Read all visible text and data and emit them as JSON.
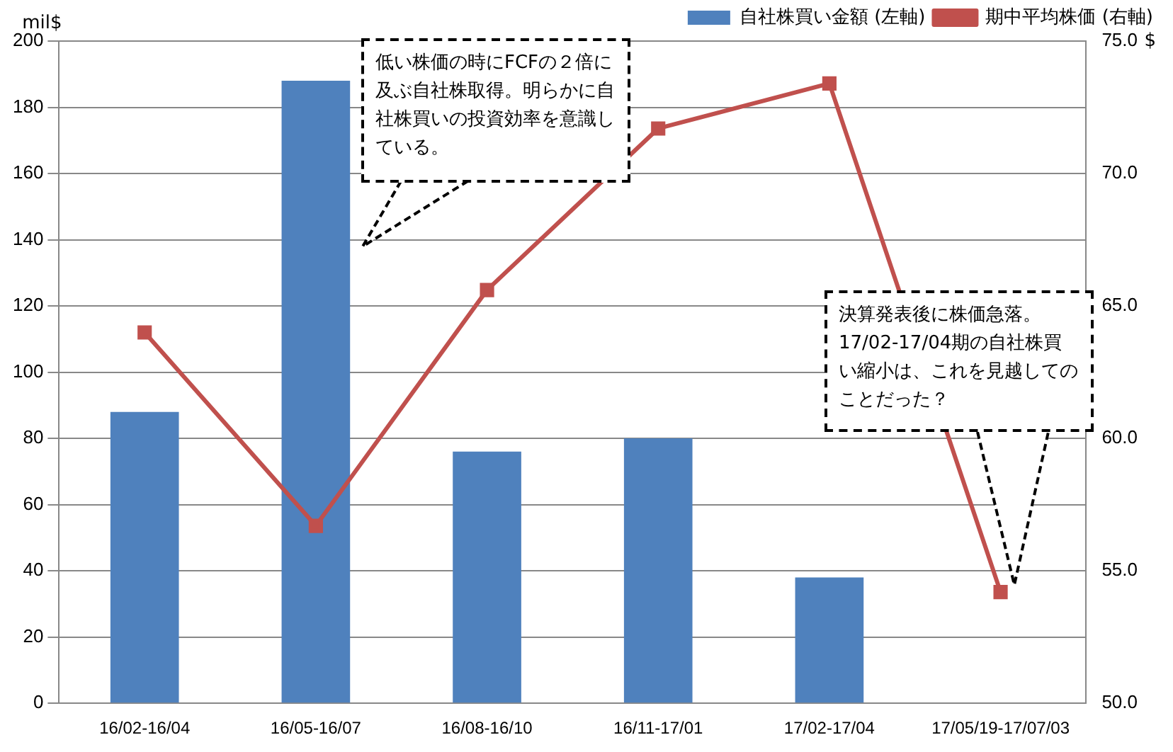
{
  "chart_data": {
    "type": "bar",
    "categories": [
      "16/02-16/04",
      "16/05-16/07",
      "16/08-16/10",
      "16/11-17/01",
      "17/02-17/04",
      "17/05/19-17/07/03"
    ],
    "series": [
      {
        "name": "自社株買い金額 (左軸)",
        "color": "#4f81bd",
        "values": [
          88,
          188,
          76,
          80,
          38,
          null
        ]
      },
      {
        "name": "期中平均株価 (右軸)",
        "type": "line",
        "axis": "y2",
        "color": "#c0504d",
        "marker": "square",
        "values": [
          64.0,
          56.7,
          65.6,
          71.7,
          73.4,
          54.2
        ]
      }
    ],
    "ylabel": "mil$",
    "y2label": "$",
    "ylim": [
      0,
      200
    ],
    "yticks": [
      0,
      20,
      40,
      60,
      80,
      100,
      120,
      140,
      160,
      180,
      200
    ],
    "y2lim": [
      50,
      75
    ],
    "y2ticks": [
      {
        "value": 50,
        "label": "50.0"
      },
      {
        "value": 55,
        "label": "55.0"
      },
      {
        "value": 60,
        "label": "60.0"
      },
      {
        "value": 65,
        "label": "65.0"
      },
      {
        "value": 70,
        "label": "70.0"
      },
      {
        "value": 75,
        "label": "75.0"
      }
    ],
    "grid": "y",
    "legend": "top right",
    "annotations": [
      "低い株価の時にFCFの２倍に及ぶ自社株取得。明らかに自社株買いの投資効率を意識している。",
      "決算発表後に株価急落。17/02-17/04期の自社株買い縮小は、これを見越してのことだった？"
    ]
  }
}
